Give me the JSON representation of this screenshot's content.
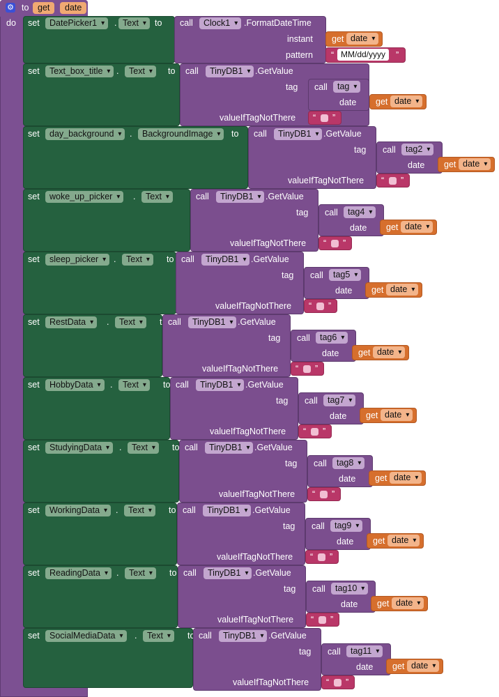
{
  "procedure": {
    "to_label": "to",
    "name": "get",
    "param": "date",
    "do_label": "do"
  },
  "words": {
    "set": "set",
    "dot": ".",
    "to": "to",
    "call": "call",
    "get": "get",
    "tag": "tag",
    "date": "date",
    "value_if_not_there": "valueIfTagNotThere",
    "instant": "instant",
    "pattern": "pattern",
    "open_quote": "“",
    "close_quote": "”"
  },
  "first_block": {
    "component": "DatePicker1",
    "property": "Text",
    "call_component": "Clock1",
    "method": ".FormatDateTime",
    "pattern_value": "MM/dd/yyyy"
  },
  "blocks": [
    {
      "component": "Text_box_title",
      "property": "Text",
      "db": "TinyDB1",
      "method": ".GetValue",
      "tag_proc": "tag"
    },
    {
      "component": "day_background",
      "property": "BackgroundImage",
      "db": "TinyDB1",
      "method": ".GetValue",
      "tag_proc": "tag2"
    },
    {
      "component": "woke_up_picker",
      "property": "Text",
      "db": "TinyDB1",
      "method": ".GetValue",
      "tag_proc": "tag4"
    },
    {
      "component": "sleep_picker",
      "property": "Text",
      "db": "TinyDB1",
      "method": ".GetValue",
      "tag_proc": "tag5"
    },
    {
      "component": "RestData",
      "property": "Text",
      "db": "TinyDB1",
      "method": ".GetValue",
      "tag_proc": "tag6"
    },
    {
      "component": "HobbyData",
      "property": "Text",
      "db": "TinyDB1",
      "method": ".GetValue",
      "tag_proc": "tag7"
    },
    {
      "component": "StudyingData",
      "property": "Text",
      "db": "TinyDB1",
      "method": ".GetValue",
      "tag_proc": "tag8"
    },
    {
      "component": "WorkingData",
      "property": "Text",
      "db": "TinyDB1",
      "method": ".GetValue",
      "tag_proc": "tag9"
    },
    {
      "component": "ReadingData",
      "property": "Text",
      "db": "TinyDB1",
      "method": ".GetValue",
      "tag_proc": "tag10"
    },
    {
      "component": "SocialMediaData",
      "property": "Text",
      "db": "TinyDB1",
      "method": ".GetValue",
      "tag_proc": "tag11"
    }
  ],
  "colors": {
    "procedure": "#7c5092",
    "setter": "#25613f",
    "call": "#7b4e8e",
    "get": "#d66f2d",
    "text": "#b93768",
    "gear": "#3b50d6"
  }
}
